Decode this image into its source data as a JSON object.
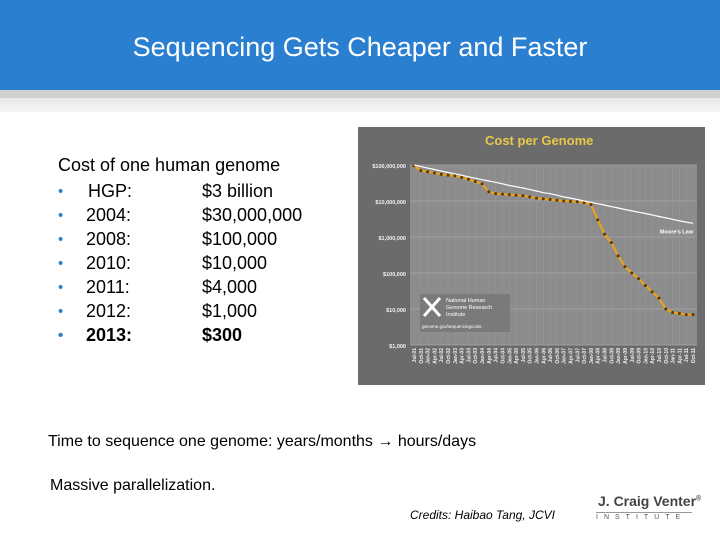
{
  "slide": {
    "title": "Sequencing Gets Cheaper and Faster",
    "cost_heading": "Cost of one human genome",
    "cost_rows": [
      {
        "label": "HGP:",
        "cost": "$3 billion"
      },
      {
        "label": "2004:",
        "cost": "$30,000,000"
      },
      {
        "label": "2008:",
        "cost": "$100,000"
      },
      {
        "label": "2010:",
        "cost": "$10,000"
      },
      {
        "label": "2011:",
        "cost": "$4,000"
      },
      {
        "label": "2012:",
        "cost": "$1,000"
      },
      {
        "label": "2013:",
        "cost": "$300"
      }
    ],
    "bullet": "•",
    "time_line": "Time to sequence one genome:  years/months → hours/days",
    "parallel_line": "Massive parallelization.",
    "credits": "Credits: Haibao Tang, JCVI",
    "logo_name": "J. Craig Venter",
    "logo_tm": "®",
    "logo_institute": "INSTITUTE"
  },
  "chart_data": {
    "type": "line",
    "title": "Cost per Genome",
    "y_scale": "log",
    "ylim": [
      1000,
      100000000
    ],
    "y_ticks": [
      "$100,000,000",
      "$10,000,000",
      "$1,000,000",
      "$100,000",
      "$10,000",
      "$1,000"
    ],
    "x_ticks": [
      "Jul-01",
      "Oct-01",
      "Jan-02",
      "Apr-02",
      "Jul-02",
      "Oct-02",
      "Jan-03",
      "Apr-03",
      "Jul-03",
      "Oct-03",
      "Jan-04",
      "Apr-04",
      "Jul-04",
      "Oct-04",
      "Jan-05",
      "Apr-05",
      "Jul-05",
      "Oct-05",
      "Jan-06",
      "Apr-06",
      "Jul-06",
      "Oct-06",
      "Jan-07",
      "Apr-07",
      "Jul-07",
      "Oct-07",
      "Jan-08",
      "Apr-08",
      "Jul-08",
      "Oct-08",
      "Jan-09",
      "Apr-09",
      "Jul-09",
      "Oct-09",
      "Jan-10",
      "Apr-10",
      "Jul-10",
      "Oct-10",
      "Jan-11",
      "Apr-11",
      "Jul-11",
      "Oct-11"
    ],
    "series": [
      {
        "name": "",
        "color": "#e8a21e",
        "values": [
          95000000,
          70000000,
          65000000,
          60000000,
          55000000,
          52000000,
          50000000,
          45000000,
          40000000,
          35000000,
          30000000,
          18000000,
          16000000,
          15500000,
          15000000,
          14500000,
          14000000,
          13000000,
          12000000,
          11500000,
          11000000,
          10500000,
          10000000,
          9800000,
          9500000,
          9000000,
          8000000,
          3000000,
          1200000,
          700000,
          300000,
          150000,
          100000,
          70000,
          45000,
          30000,
          20000,
          10000,
          8000,
          7500,
          7000,
          7000
        ]
      },
      {
        "name": "Moore's Law",
        "color": "#ffffff",
        "values": [
          100000000,
          90000000,
          82000000,
          75000000,
          68000000,
          62000000,
          57000000,
          52000000,
          47000000,
          43000000,
          39000000,
          36000000,
          33000000,
          30000000,
          27000000,
          25000000,
          23000000,
          21000000,
          19000000,
          17000000,
          16000000,
          14500000,
          13000000,
          12000000,
          11000000,
          10000000,
          9200000,
          8400000,
          7700000,
          7000000,
          6400000,
          5800000,
          5300000,
          4900000,
          4500000,
          4100000,
          3700000,
          3400000,
          3100000,
          2800000,
          2600000,
          2400000
        ]
      }
    ],
    "annotation": "Moore's Law",
    "logo_text": [
      "National Human",
      "Genome Research",
      "Institute",
      "genome.gov/sequencingcosts"
    ],
    "grid": true,
    "legend": "none"
  }
}
